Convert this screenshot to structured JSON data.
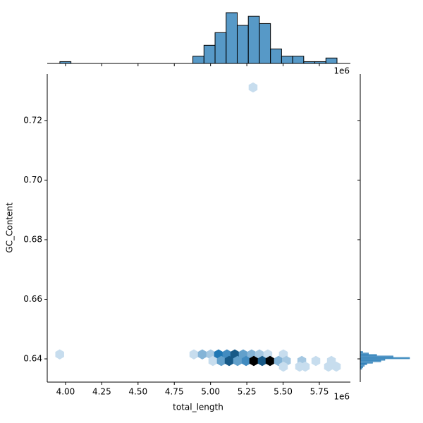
{
  "chart_data": {
    "type": "hexbin",
    "x_label": "total_length",
    "y_label": "GC_Content",
    "x_offset": "1e6",
    "color": "#1f77b4",
    "xlim": [
      3.874,
      5.964
    ],
    "ylim": [
      0.6322,
      0.7356
    ],
    "xticks": [
      {
        "value": 4,
        "label": "4.00"
      },
      {
        "value": 4.25,
        "label": "4.25"
      },
      {
        "value": 4.5,
        "label": "4.50"
      },
      {
        "value": 4.75,
        "label": "4.75"
      },
      {
        "value": 5,
        "label": "5.00"
      },
      {
        "value": 5.25,
        "label": "5.25"
      },
      {
        "value": 5.5,
        "label": "5.50"
      },
      {
        "value": 5.75,
        "label": "5.75"
      }
    ],
    "yticks": [
      {
        "value": 0.64,
        "label": "0.64"
      },
      {
        "value": 0.66,
        "label": "0.66"
      },
      {
        "value": 0.68,
        "label": "0.68"
      },
      {
        "value": 0.7,
        "label": "0.70"
      },
      {
        "value": 0.72,
        "label": "0.72"
      }
    ],
    "hexbins": {
      "x": [
        3.96,
        4.885,
        4.943,
        5.001,
        5.055,
        5.113,
        5.167,
        5.225,
        5.283,
        5.337,
        5.395,
        5.502,
        5.016,
        5.074,
        5.128,
        5.186,
        5.245,
        5.298,
        5.356,
        5.41,
        5.468,
        5.523,
        5.629,
        5.502,
        5.614,
        5.653,
        5.813,
        5.867,
        5.833,
        5.726,
        5.293
      ],
      "y": [
        0.6415,
        0.6415,
        0.6415,
        0.6415,
        0.6415,
        0.6415,
        0.6415,
        0.6415,
        0.6415,
        0.6415,
        0.6415,
        0.6415,
        0.6393,
        0.6393,
        0.6393,
        0.6393,
        0.6393,
        0.6393,
        0.6393,
        0.6393,
        0.6393,
        0.6393,
        0.6393,
        0.6374,
        0.6374,
        0.6374,
        0.6374,
        0.6374,
        0.6393,
        0.6393,
        0.7311
      ],
      "counts": [
        1,
        1,
        3,
        2,
        6,
        5,
        7,
        4,
        3,
        2,
        1,
        1,
        1,
        4,
        7,
        4,
        5,
        10,
        7,
        10,
        3,
        2,
        2,
        1,
        1,
        1,
        1,
        1,
        1,
        1,
        1
      ]
    },
    "marginal_x": {
      "bins": [
        3.9611,
        4.0375,
        4.1139,
        4.1904,
        4.2668,
        4.3432,
        4.4196,
        4.496,
        4.5725,
        4.6489,
        4.7253,
        4.8017,
        4.8781,
        4.9546,
        5.031,
        5.1074,
        5.1838,
        5.2602,
        5.3367,
        5.4131,
        5.4895,
        5.5659,
        5.6423,
        5.7188,
        5.7952,
        5.8716
      ],
      "counts": [
        1,
        0,
        0,
        0,
        0,
        0,
        0,
        0,
        0,
        0,
        0,
        0,
        4,
        10,
        17,
        28,
        21,
        26,
        22,
        8,
        4,
        4,
        1,
        1,
        3
      ]
    },
    "marginal_y": {
      "bins": [
        0.6365,
        0.637,
        0.6375,
        0.638,
        0.6385,
        0.639,
        0.6395,
        0.64,
        0.6405,
        0.641,
        0.6415,
        0.642,
        0.6425
      ],
      "counts": [
        2,
        3,
        5,
        8,
        15,
        25,
        30,
        60,
        40,
        20,
        10,
        3
      ]
    }
  }
}
